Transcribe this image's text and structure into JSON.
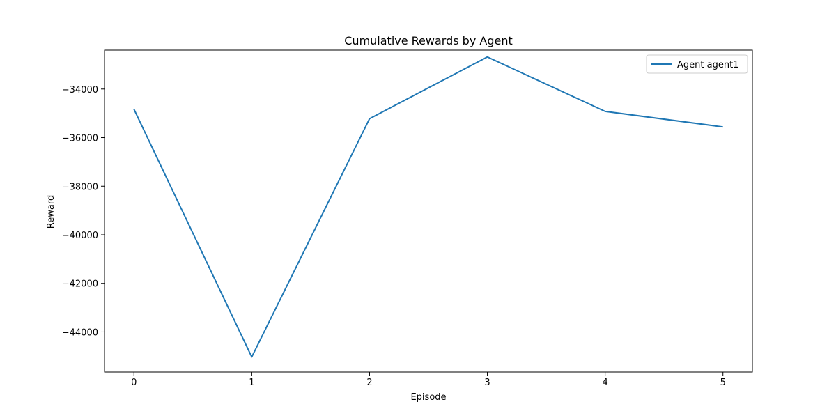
{
  "chart_data": {
    "type": "line",
    "title": "Cumulative Rewards by Agent",
    "xlabel": "Episode",
    "ylabel": "Reward",
    "x": [
      0,
      1,
      2,
      3,
      4,
      5
    ],
    "xticks": [
      0,
      1,
      2,
      3,
      4,
      5
    ],
    "yticks": [
      -44000,
      -42000,
      -40000,
      -38000,
      -36000,
      -34000
    ],
    "ytick_labels": [
      "−44000",
      "−42000",
      "−40000",
      "−38000",
      "−36000",
      "−34000"
    ],
    "xlim": [
      -0.25,
      5.25
    ],
    "ylim": [
      -45650,
      -32400
    ],
    "grid": false,
    "legend_position": "top-right",
    "series": [
      {
        "name": "Agent agent1",
        "color": "#1f77b4",
        "values": [
          -34830,
          -45030,
          -35220,
          -32680,
          -34920,
          -35560
        ]
      }
    ]
  }
}
